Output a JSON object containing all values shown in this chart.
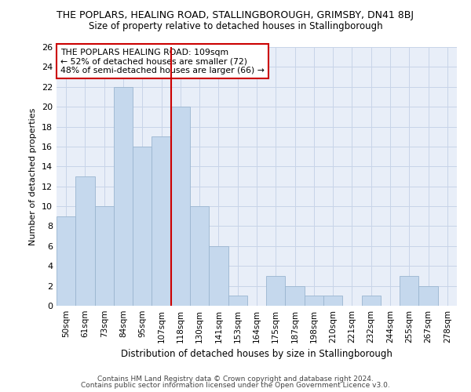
{
  "title": "THE POPLARS, HEALING ROAD, STALLINGBOROUGH, GRIMSBY, DN41 8BJ",
  "subtitle": "Size of property relative to detached houses in Stallingborough",
  "xlabel": "Distribution of detached houses by size in Stallingborough",
  "ylabel": "Number of detached properties",
  "categories": [
    "50sqm",
    "61sqm",
    "73sqm",
    "84sqm",
    "95sqm",
    "107sqm",
    "118sqm",
    "130sqm",
    "141sqm",
    "153sqm",
    "164sqm",
    "175sqm",
    "187sqm",
    "198sqm",
    "210sqm",
    "221sqm",
    "232sqm",
    "244sqm",
    "255sqm",
    "267sqm",
    "278sqm"
  ],
  "values": [
    9,
    13,
    10,
    22,
    16,
    17,
    20,
    10,
    6,
    1,
    0,
    3,
    2,
    1,
    1,
    0,
    1,
    0,
    3,
    2,
    0
  ],
  "bar_color": "#c5d8ed",
  "bar_edge_color": "#9ab5d0",
  "grid_color": "#c8d4e8",
  "bg_color": "#e8eef8",
  "vline_x": 5.5,
  "vline_color": "#cc0000",
  "annotation_text": "THE POPLARS HEALING ROAD: 109sqm\n← 52% of detached houses are smaller (72)\n48% of semi-detached houses are larger (66) →",
  "annotation_box_color": "#ffffff",
  "annotation_box_edge": "#cc0000",
  "ylim": [
    0,
    26
  ],
  "yticks": [
    0,
    2,
    4,
    6,
    8,
    10,
    12,
    14,
    16,
    18,
    20,
    22,
    24,
    26
  ],
  "footer1": "Contains HM Land Registry data © Crown copyright and database right 2024.",
  "footer2": "Contains public sector information licensed under the Open Government Licence v3.0."
}
